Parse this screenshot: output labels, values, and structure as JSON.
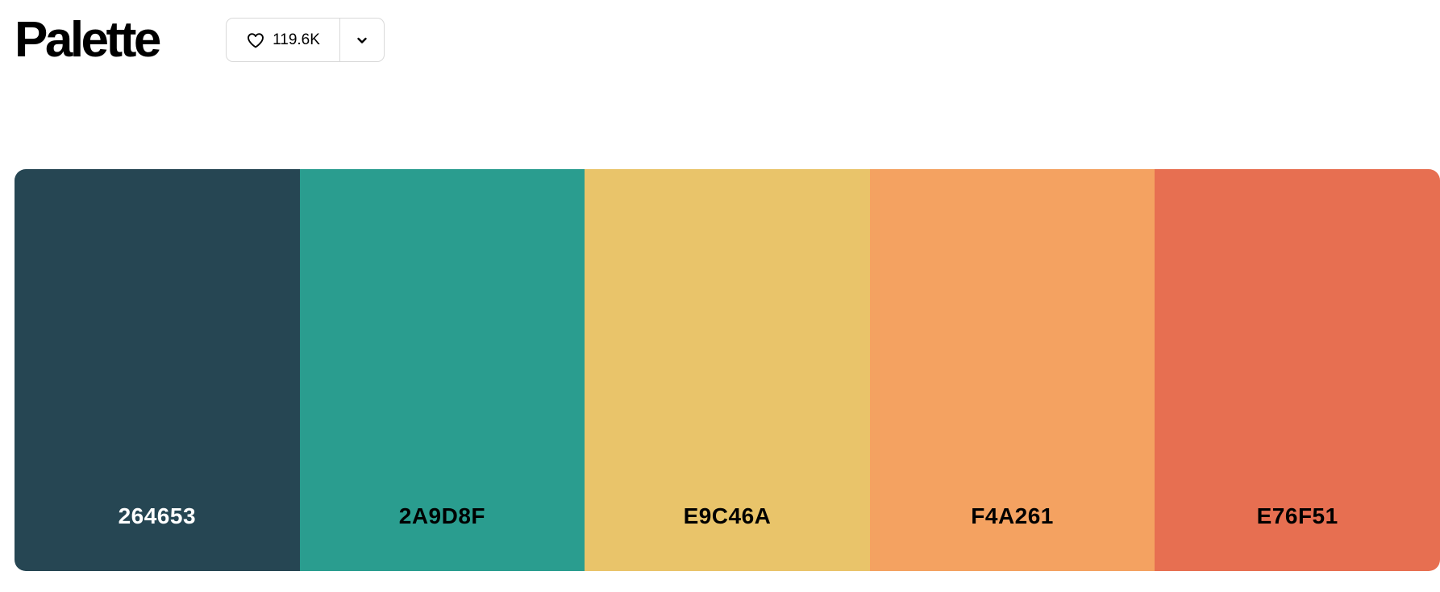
{
  "page": {
    "title": "Palette"
  },
  "actions": {
    "like_count": "119.6K",
    "icons": {
      "like": "heart-icon",
      "more": "chevron-down-icon"
    }
  },
  "palette": {
    "colors": [
      {
        "hex_label": "264653",
        "background": "#264653",
        "text_color": "#ffffff"
      },
      {
        "hex_label": "2A9D8F",
        "background": "#2A9D8F",
        "text_color": "#000000"
      },
      {
        "hex_label": "E9C46A",
        "background": "#E9C46A",
        "text_color": "#000000"
      },
      {
        "hex_label": "F4A261",
        "background": "#F4A261",
        "text_color": "#000000"
      },
      {
        "hex_label": "E76F51",
        "background": "#E76F51",
        "text_color": "#000000"
      }
    ]
  }
}
